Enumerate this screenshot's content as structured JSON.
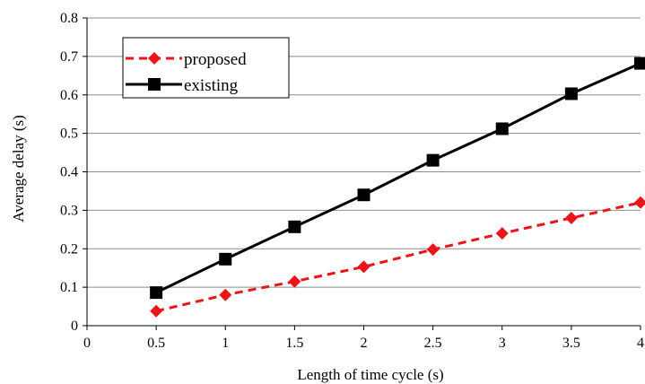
{
  "chart_data": {
    "type": "line",
    "xlabel": "Length of time cycle (s)",
    "ylabel": "Average delay (s)",
    "xlim": [
      0,
      4
    ],
    "ylim": [
      0,
      0.8
    ],
    "xticks": [
      "0",
      "0.5",
      "1",
      "1.5",
      "2",
      "2.5",
      "3",
      "3.5",
      "4"
    ],
    "yticks": [
      "0",
      "0.1",
      "0.2",
      "0.3",
      "0.4",
      "0.5",
      "0.6",
      "0.7",
      "0.8"
    ],
    "grid": "horizontal",
    "legend_position": "top-left",
    "x": [
      0.5,
      1,
      1.5,
      2,
      2.5,
      3,
      3.5,
      4
    ],
    "series": [
      {
        "name": "proposed",
        "values": [
          0.038,
          0.08,
          0.115,
          0.153,
          0.198,
          0.24,
          0.28,
          0.32
        ],
        "color": "#e8161b",
        "line_style": "dashed",
        "marker": "diamond"
      },
      {
        "name": "existing",
        "values": [
          0.086,
          0.173,
          0.257,
          0.34,
          0.43,
          0.512,
          0.603,
          0.682
        ],
        "color": "#000000",
        "line_style": "solid",
        "marker": "square"
      }
    ]
  }
}
